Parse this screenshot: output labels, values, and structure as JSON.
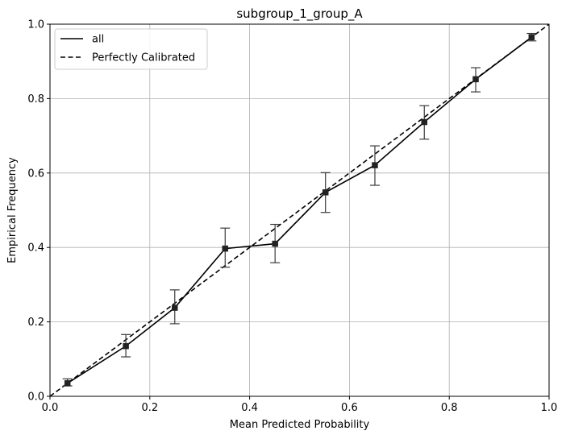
{
  "chart_data": {
    "type": "line",
    "title": "subgroup_1_group_A",
    "xlabel": "Mean Predicted Probability",
    "ylabel": "Empirical Frequency",
    "xlim": [
      0.0,
      1.0
    ],
    "ylim": [
      0.0,
      1.0
    ],
    "xticks": [
      "0.0",
      "0.2",
      "0.4",
      "0.6",
      "0.8",
      "1.0"
    ],
    "yticks": [
      "0.0",
      "0.2",
      "0.4",
      "0.6",
      "0.8",
      "1.0"
    ],
    "grid": true,
    "legend_position": "top-left",
    "series": [
      {
        "name": "all",
        "color": "#000000",
        "style": "solid",
        "marker": "square",
        "x": [
          0.035,
          0.152,
          0.25,
          0.351,
          0.451,
          0.552,
          0.651,
          0.75,
          0.853,
          0.965
        ],
        "y": [
          0.035,
          0.135,
          0.238,
          0.397,
          0.41,
          0.548,
          0.621,
          0.737,
          0.852,
          0.965
        ],
        "err_low": [
          0.028,
          0.106,
          0.195,
          0.347,
          0.359,
          0.494,
          0.567,
          0.691,
          0.818,
          0.955
        ],
        "err_high": [
          0.047,
          0.166,
          0.286,
          0.452,
          0.462,
          0.601,
          0.673,
          0.781,
          0.883,
          0.975
        ]
      },
      {
        "name": "Perfectly Calibrated",
        "color": "#000000",
        "style": "dashed",
        "x": [
          0.0,
          1.0
        ],
        "y": [
          0.0,
          1.0
        ]
      }
    ]
  }
}
